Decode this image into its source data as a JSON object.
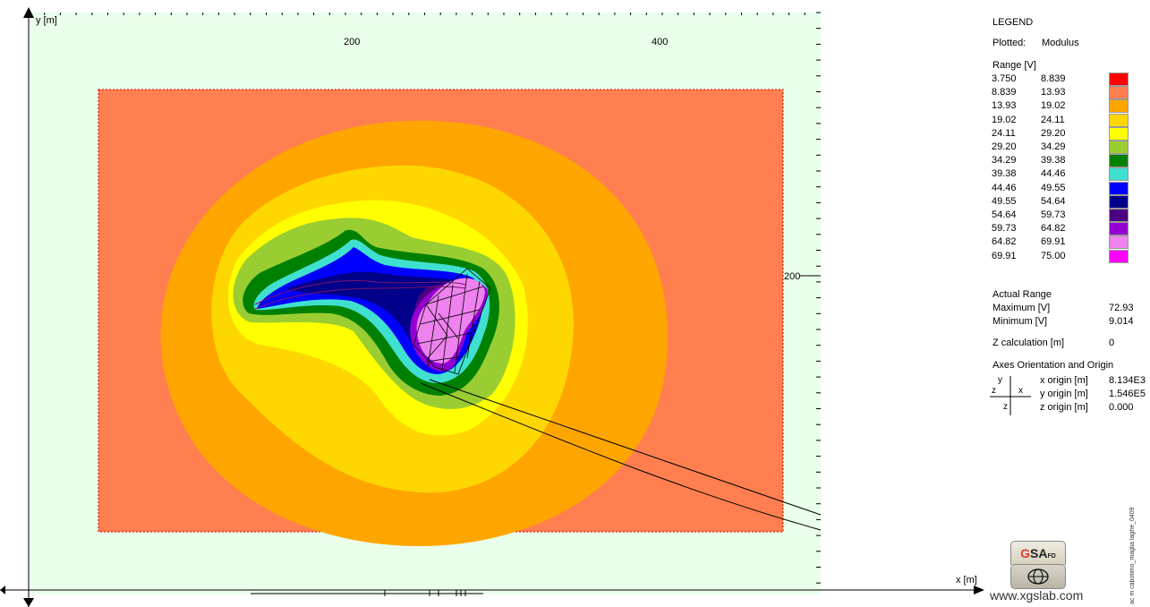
{
  "chart_data": {
    "type": "heatmap",
    "title": "",
    "xlabel": "x [m]",
    "ylabel": "y [m]",
    "x_ticks": [
      "200",
      "400"
    ],
    "y_ticks": [
      "200"
    ],
    "legend": {
      "title": "LEGEND",
      "plotted_label": "Plotted:",
      "plotted_value": "Modulus",
      "range_label": "Range [V]",
      "ranges": [
        {
          "lo": "3.750",
          "hi": "8.839",
          "color": "#ff0000"
        },
        {
          "lo": "8.839",
          "hi": "13.93",
          "color": "#ff7f50"
        },
        {
          "lo": "13.93",
          "hi": "19.02",
          "color": "#ffa500"
        },
        {
          "lo": "19.02",
          "hi": "24.11",
          "color": "#ffd700"
        },
        {
          "lo": "24.11",
          "hi": "29.20",
          "color": "#ffff00"
        },
        {
          "lo": "29.20",
          "hi": "34.29",
          "color": "#9acd32"
        },
        {
          "lo": "34.29",
          "hi": "39.38",
          "color": "#008000"
        },
        {
          "lo": "39.38",
          "hi": "44.46",
          "color": "#40e0d0"
        },
        {
          "lo": "44.46",
          "hi": "49.55",
          "color": "#0000ff"
        },
        {
          "lo": "49.55",
          "hi": "54.64",
          "color": "#00008b"
        },
        {
          "lo": "54.64",
          "hi": "59.73",
          "color": "#4b0082"
        },
        {
          "lo": "59.73",
          "hi": "64.82",
          "color": "#9400d3"
        },
        {
          "lo": "64.82",
          "hi": "69.91",
          "color": "#ee82ee"
        },
        {
          "lo": "69.91",
          "hi": "75.00",
          "color": "#ff00ff"
        }
      ]
    },
    "actual_range": {
      "title": "Actual Range",
      "max_label": "Maximum [V]",
      "max_value": "72.93",
      "min_label": "Minimum [V]",
      "min_value": "9.014"
    },
    "z_calc": {
      "label": "Z calculation [m]",
      "value": "0"
    },
    "axes_origin": {
      "title": "Axes Orientation and Origin",
      "x_label": "x origin [m]",
      "x_value": "8.134E3",
      "y_label": "y origin [m]",
      "y_value": "1.546E5",
      "z_label": "z origin [m]",
      "z_value": "0.000",
      "axis_y": "y",
      "axis_x": "x",
      "axis_z": "z"
    },
    "colors": {
      "background": "#eaffea",
      "frame_fill": "#ff7f50",
      "outline": "#000000"
    }
  },
  "branding": {
    "logo_g": "G",
    "logo_sa": "SA",
    "logo_fd": "FD",
    "logo_icon": "globe-icon",
    "url": "www.xgslab.com",
    "side_text": "ac m cabotimo_maglia laghe_0409"
  }
}
